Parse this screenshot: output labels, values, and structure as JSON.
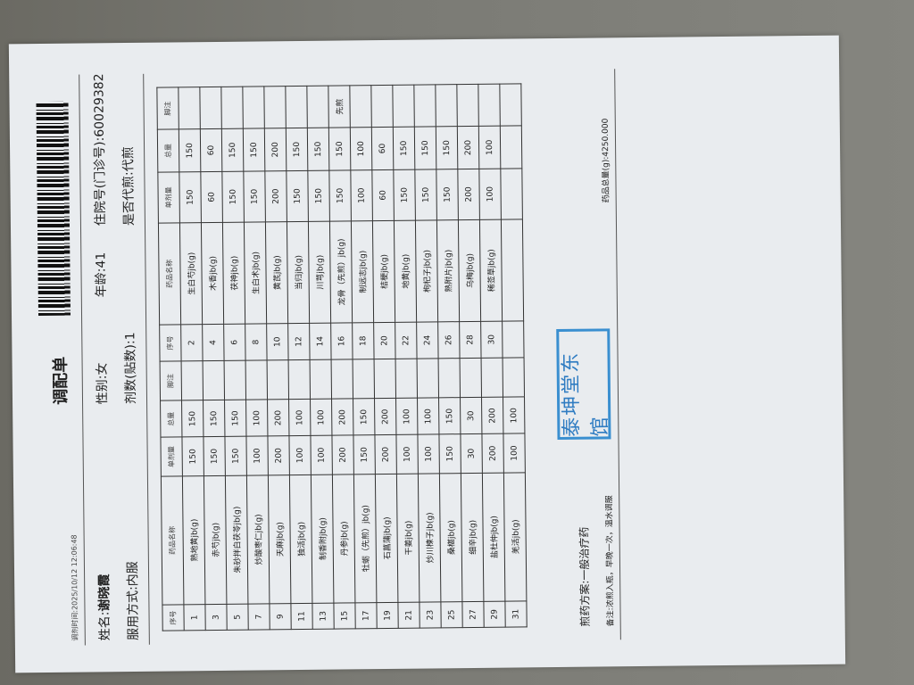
{
  "title": "调配单",
  "timestamp": "调剂时间:2025/10/12 12:06:48",
  "patient": {
    "name_label": "姓名:",
    "name": "谢晓霞",
    "gender": "性别:女",
    "age": "年龄:41",
    "id": "住院号(门诊号):60029382",
    "usage": "服用方式:内服",
    "doses": "剂数(贴数):1",
    "decoct": "是否代煎:代煎"
  },
  "table": {
    "headers": [
      "序号",
      "药品名称",
      "单剂量",
      "总量",
      "脚注",
      "序号",
      "药品名称",
      "单剂量",
      "总量",
      "脚注"
    ],
    "rows": [
      [
        "1",
        "熟地黄jb(g)",
        "150",
        "150",
        "",
        "2",
        "生白芍jb(g)",
        "150",
        "150",
        ""
      ],
      [
        "3",
        "赤芍jb(g)",
        "150",
        "150",
        "",
        "4",
        "木香jb(g)",
        "60",
        "60",
        ""
      ],
      [
        "5",
        "朱砂拌白茯苓jb(g)",
        "150",
        "150",
        "",
        "6",
        "茯神jb(g)",
        "150",
        "150",
        ""
      ],
      [
        "7",
        "炒酸枣仁jb(g)",
        "100",
        "100",
        "",
        "8",
        "生白术jb(g)",
        "150",
        "150",
        ""
      ],
      [
        "9",
        "天麻jb(g)",
        "200",
        "200",
        "",
        "10",
        "黄芪jb(g)",
        "200",
        "200",
        ""
      ],
      [
        "11",
        "独活jb(g)",
        "100",
        "100",
        "",
        "12",
        "当归jb(g)",
        "150",
        "150",
        ""
      ],
      [
        "13",
        "制香附jb(g)",
        "100",
        "100",
        "",
        "14",
        "川芎jb(g)",
        "150",
        "150",
        ""
      ],
      [
        "15",
        "丹参jb(g)",
        "200",
        "200",
        "",
        "16",
        "龙骨（先煎）jb(g)",
        "150",
        "150",
        "先煎"
      ],
      [
        "17",
        "牡蛎（先煎）jb(g)",
        "150",
        "150",
        "",
        "18",
        "制远志jb(g)",
        "100",
        "100",
        ""
      ],
      [
        "19",
        "石菖蒲jb(g)",
        "200",
        "200",
        "",
        "20",
        "桔梗jb(g)",
        "60",
        "60",
        ""
      ],
      [
        "21",
        "干姜jb(g)",
        "100",
        "100",
        "",
        "22",
        "地黄jb(g)",
        "150",
        "150",
        ""
      ],
      [
        "23",
        "炒川楝子jb(g)",
        "100",
        "100",
        "",
        "24",
        "枸杞子jb(g)",
        "150",
        "150",
        ""
      ],
      [
        "25",
        "桑椹jb(g)",
        "150",
        "150",
        "",
        "26",
        "熟附片jb(g)",
        "150",
        "150",
        ""
      ],
      [
        "27",
        "细辛jb(g)",
        "30",
        "30",
        "",
        "28",
        "乌梅jb(g)",
        "200",
        "200",
        ""
      ],
      [
        "29",
        "盐杜仲jb(g)",
        "200",
        "200",
        "",
        "30",
        "稀莶草jb(g)",
        "100",
        "100",
        ""
      ],
      [
        "31",
        "羌活jb(g)",
        "100",
        "100",
        "",
        "",
        "",
        "",
        "",
        ""
      ]
    ]
  },
  "stamp": "泰坤堂东馆",
  "footer": {
    "plan": "煎药方案:一般治疗药",
    "remark": "备注:浓煎入瓶，早晚一次，温水调服",
    "total": "药品总量(g):4250.000"
  },
  "colors": {
    "stamp": "#2f7cc2"
  }
}
